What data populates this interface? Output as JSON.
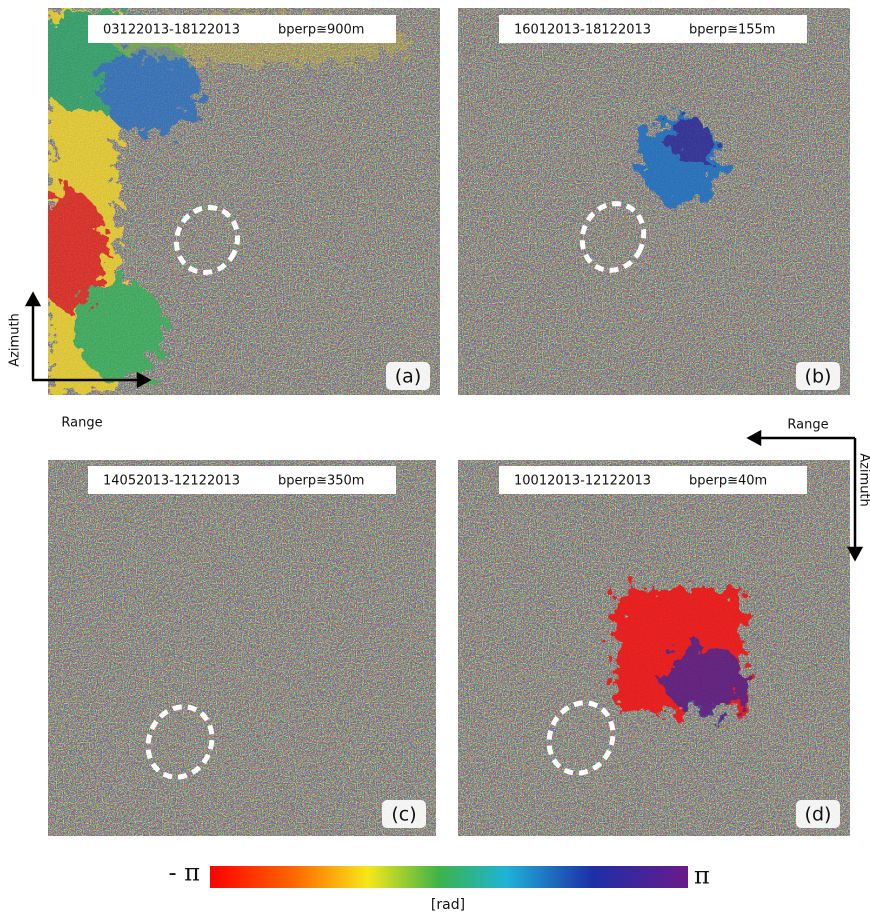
{
  "panels": [
    {
      "dates": "03122013-18122013",
      "bperp": "bperp≅900m",
      "label": "(a)"
    },
    {
      "dates": "16012013-18122013",
      "bperp": "bperp≅155m",
      "label": "(b)"
    },
    {
      "dates": "14052013-12122013",
      "bperp": "bperp≅350m",
      "label": "(c)"
    },
    {
      "dates": "10012013-12122013",
      "bperp": "bperp≅40m",
      "label": "(d)"
    }
  ],
  "axes_left": {
    "vertical": "Azimuth",
    "horizontal": "Range"
  },
  "axes_right": {
    "vertical": "Azimuth",
    "horizontal": "Range"
  },
  "colorbar": {
    "min_label": "- π",
    "max_label": "π",
    "unit": "[rad]"
  }
}
